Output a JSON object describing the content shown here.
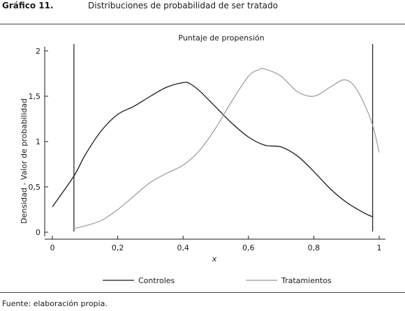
{
  "header": {
    "figure_number": "Gráfico 11.",
    "figure_title": "Distribuciones de probabilidad de ser tratado"
  },
  "footer": {
    "source": "Fuente: elaboración propia."
  },
  "chart_data": {
    "type": "line",
    "title": "Puntaje de propensión",
    "xlabel": "x",
    "ylabel": "Densidad - Valor de probabilidad",
    "xlim": [
      0,
      1
    ],
    "ylim": [
      0,
      2
    ],
    "x_ticks": [
      {
        "value": 0,
        "label": "0"
      },
      {
        "value": 0.2,
        "label": "0,2"
      },
      {
        "value": 0.4,
        "label": "0,4"
      },
      {
        "value": 0.6,
        "label": "0,6"
      },
      {
        "value": 0.8,
        "label": "0,8"
      },
      {
        "value": 1,
        "label": "1"
      }
    ],
    "y_ticks": [
      {
        "value": 0,
        "label": "0"
      },
      {
        "value": 0.5,
        "label": "0,5"
      },
      {
        "value": 1,
        "label": "1"
      },
      {
        "value": 1.5,
        "label": "1,5"
      },
      {
        "value": 2,
        "label": "2"
      }
    ],
    "vertical_lines": [
      0.066,
      0.98
    ],
    "legend_position": "bottom",
    "series": [
      {
        "name": "Controles",
        "color": "#1a1a1a",
        "x": [
          0.0,
          0.066,
          0.1,
          0.15,
          0.2,
          0.25,
          0.3,
          0.35,
          0.4,
          0.42,
          0.45,
          0.5,
          0.55,
          0.6,
          0.65,
          0.7,
          0.75,
          0.8,
          0.85,
          0.9,
          0.95,
          0.98
        ],
        "y": [
          0.28,
          0.62,
          0.85,
          1.12,
          1.3,
          1.39,
          1.5,
          1.6,
          1.65,
          1.64,
          1.56,
          1.38,
          1.2,
          1.05,
          0.96,
          0.94,
          0.84,
          0.67,
          0.48,
          0.33,
          0.22,
          0.17
        ]
      },
      {
        "name": "Tratamientos",
        "color": "#9a9a9a",
        "x": [
          0.066,
          0.1,
          0.15,
          0.2,
          0.25,
          0.3,
          0.35,
          0.4,
          0.45,
          0.5,
          0.55,
          0.6,
          0.63,
          0.65,
          0.7,
          0.75,
          0.8,
          0.85,
          0.89,
          0.92,
          0.95,
          0.98,
          1.0
        ],
        "y": [
          0.04,
          0.07,
          0.13,
          0.25,
          0.4,
          0.55,
          0.65,
          0.74,
          0.9,
          1.15,
          1.45,
          1.72,
          1.79,
          1.8,
          1.72,
          1.55,
          1.5,
          1.6,
          1.68,
          1.63,
          1.45,
          1.18,
          0.88
        ]
      }
    ]
  }
}
